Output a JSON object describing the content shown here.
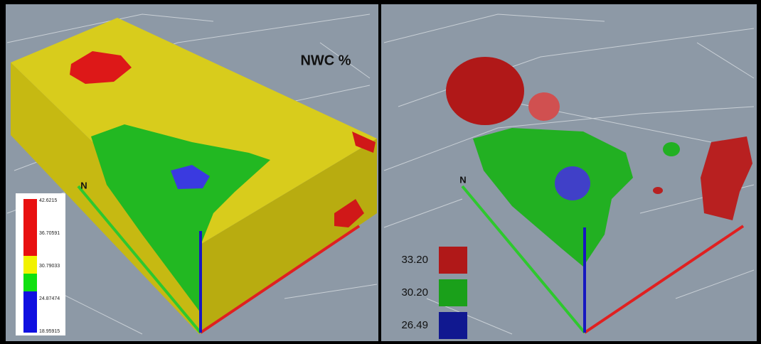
{
  "title": "NWC %",
  "left_panel": {
    "axis_label": "N",
    "colorbar": {
      "labels": [
        "42.6215",
        "36.70591",
        "30.79033",
        "24.87474",
        "18.95915"
      ],
      "colors": [
        "#e81010",
        "#f2f200",
        "#10e010",
        "#1010e0"
      ]
    }
  },
  "right_panel": {
    "axis_label": "N",
    "legend": [
      {
        "label": "33.20",
        "color": "#b01818"
      },
      {
        "label": "30.20",
        "color": "#1aa01a"
      },
      {
        "label": "26.49",
        "color": "#101890"
      }
    ]
  }
}
